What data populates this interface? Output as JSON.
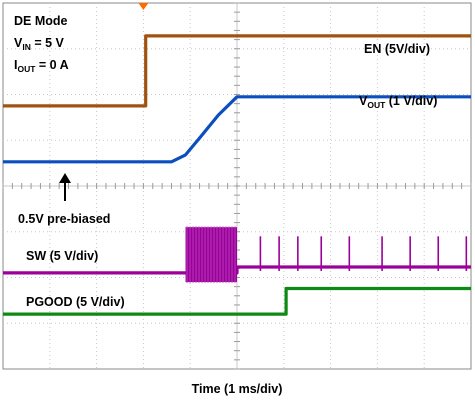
{
  "chart_data": {
    "type": "line",
    "title": "",
    "xlabel": "Time (1 ms/div)",
    "ylabel": "",
    "x_divisions": 10,
    "y_divisions": 8,
    "grid": true,
    "conditions": {
      "mode": "DE Mode",
      "vin": {
        "main": "V",
        "sub": "IN",
        "value": " = 5 V"
      },
      "iout": {
        "main": "I",
        "sub": "OUT",
        "value": " = 0 A"
      }
    },
    "annotation": "0.5V pre-biased",
    "trigger_marker_color": "#ff6a00",
    "series": [
      {
        "name": "EN (5V/div)",
        "label_main": "EN (5V/div)",
        "color": "#a0520f",
        "x_ms": [
          0,
          3.05,
          3.05,
          10
        ],
        "y_div": [
          1.75,
          1.75,
          3.28,
          3.28
        ]
      },
      {
        "name": "VOUT (1 V/div)",
        "label_main": "V",
        "label_sub": "OUT",
        "label_tail": " (1 V/div)",
        "color": "#0b4fbf",
        "x_ms": [
          0,
          3.6,
          3.9,
          4.2,
          4.6,
          5.0,
          10
        ],
        "y_div": [
          0.53,
          0.53,
          0.68,
          1.05,
          1.55,
          1.95,
          1.95
        ]
      },
      {
        "name": "SW (5 V/div)",
        "label_main": "SW (5 V/div)",
        "color": "#9b009b",
        "x_ms": [
          0,
          3.9,
          3.9,
          5.0,
          5.0,
          10
        ],
        "y_div": [
          -1.9,
          -1.9,
          -1.9,
          -1.9,
          -1.77,
          -1.77
        ],
        "burst_ms": [
          3.9,
          5.0
        ],
        "burst_y_div": [
          -2.1,
          -0.9
        ],
        "pulse_ms": [
          5.5,
          5.9,
          6.3,
          6.8,
          7.4,
          8.1,
          8.7,
          9.3,
          9.9
        ],
        "pulse_y_div": -1.1
      },
      {
        "name": "PGOOD (5 V/div)",
        "label_main": "PGOOD (5 V/div)",
        "color": "#0e8a14",
        "x_ms": [
          0,
          6.05,
          6.05,
          10
        ],
        "y_div": [
          -2.8,
          -2.8,
          -2.24,
          -2.24
        ]
      }
    ]
  }
}
